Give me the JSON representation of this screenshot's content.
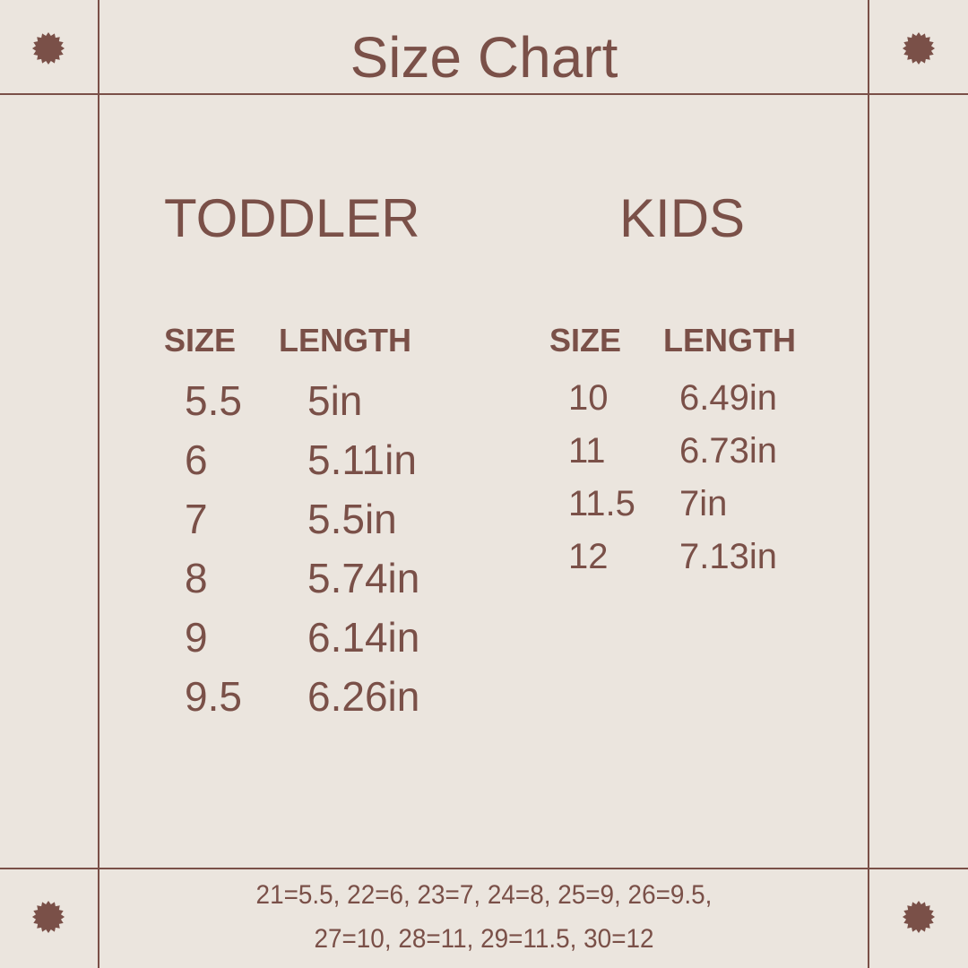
{
  "title": "Size Chart",
  "colors": {
    "background": "#ebe5de",
    "accent": "#7a5048"
  },
  "decoration_icon": "starburst-icon",
  "toddler": {
    "heading": "TODDLER",
    "columns": [
      "SIZE",
      "LENGTH"
    ],
    "rows": [
      {
        "size": "5.5",
        "length": "5in"
      },
      {
        "size": "6",
        "length": "5.11in"
      },
      {
        "size": "7",
        "length": "5.5in"
      },
      {
        "size": "8",
        "length": "5.74in"
      },
      {
        "size": "9",
        "length": "6.14in"
      },
      {
        "size": "9.5",
        "length": "6.26in"
      }
    ]
  },
  "kids": {
    "heading": "KIDS",
    "columns": [
      "SIZE",
      "LENGTH"
    ],
    "rows": [
      {
        "size": "10",
        "length": "6.49in"
      },
      {
        "size": "11",
        "length": "6.73in"
      },
      {
        "size": "11.5",
        "length": "7in"
      },
      {
        "size": "12",
        "length": "7.13in"
      }
    ]
  },
  "footer": {
    "line1": "21=5.5, 22=6, 23=7, 24=8, 25=9, 26=9.5,",
    "line2": "27=10, 28=11, 29=11.5, 30=12"
  }
}
